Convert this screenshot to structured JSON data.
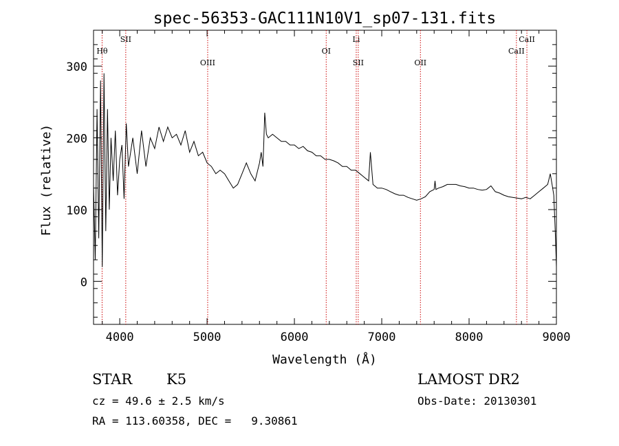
{
  "chart_data": {
    "type": "line",
    "title": "spec-56353-GAC111N10V1_sp07-131.fits",
    "xlabel": "Wavelength (Å)",
    "ylabel": "Flux (relative)",
    "xlim": [
      3700,
      9000
    ],
    "ylim": [
      -60,
      350
    ],
    "xticks": [
      4000,
      5000,
      6000,
      7000,
      8000,
      9000
    ],
    "yticks": [
      0,
      100,
      200,
      300
    ],
    "grid": false,
    "series": [
      {
        "color": "#000000",
        "x": [
          3700,
          3720,
          3740,
          3760,
          3780,
          3800,
          3820,
          3840,
          3860,
          3880,
          3900,
          3925,
          3950,
          3975,
          4000,
          4025,
          4050,
          4075,
          4100,
          4150,
          4200,
          4250,
          4300,
          4350,
          4400,
          4450,
          4500,
          4550,
          4600,
          4650,
          4700,
          4750,
          4800,
          4850,
          4900,
          4950,
          5000,
          5050,
          5100,
          5150,
          5200,
          5250,
          5300,
          5350,
          5400,
          5450,
          5500,
          5550,
          5600,
          5620,
          5640,
          5650,
          5660,
          5680,
          5700,
          5750,
          5800,
          5850,
          5900,
          5950,
          6000,
          6050,
          6100,
          6150,
          6200,
          6250,
          6300,
          6350,
          6400,
          6450,
          6500,
          6550,
          6600,
          6650,
          6700,
          6750,
          6800,
          6850,
          6870,
          6900,
          6950,
          7000,
          7050,
          7100,
          7150,
          7200,
          7250,
          7300,
          7350,
          7400,
          7450,
          7500,
          7550,
          7600,
          7610,
          7620,
          7650,
          7700,
          7750,
          7800,
          7850,
          7900,
          7950,
          8000,
          8050,
          8100,
          8150,
          8200,
          8250,
          8300,
          8350,
          8400,
          8450,
          8500,
          8550,
          8600,
          8650,
          8700,
          8750,
          8800,
          8850,
          8900,
          8930,
          8950,
          8970,
          8990,
          9000
        ],
        "y": [
          135,
          30,
          240,
          60,
          280,
          20,
          290,
          70,
          240,
          100,
          200,
          140,
          210,
          120,
          170,
          190,
          115,
          220,
          160,
          200,
          150,
          210,
          160,
          200,
          185,
          215,
          195,
          215,
          200,
          205,
          190,
          210,
          180,
          195,
          175,
          180,
          165,
          160,
          150,
          155,
          150,
          140,
          130,
          135,
          150,
          165,
          150,
          140,
          165,
          180,
          160,
          195,
          235,
          205,
          200,
          205,
          200,
          195,
          195,
          190,
          190,
          185,
          188,
          182,
          180,
          175,
          175,
          170,
          170,
          168,
          165,
          160,
          160,
          155,
          155,
          150,
          145,
          140,
          180,
          135,
          130,
          130,
          128,
          125,
          122,
          120,
          120,
          117,
          115,
          113,
          115,
          118,
          125,
          128,
          140,
          128,
          130,
          132,
          135,
          135,
          135,
          133,
          132,
          130,
          130,
          128,
          127,
          128,
          133,
          125,
          123,
          120,
          118,
          117,
          116,
          115,
          117,
          115,
          120,
          125,
          130,
          135,
          150,
          135,
          120,
          60,
          20
        ]
      }
    ],
    "lines": [
      {
        "label": "Hθ",
        "x": 3798,
        "row": 1
      },
      {
        "label": "SII",
        "x": 4069,
        "row": 0
      },
      {
        "label": "OIII",
        "x": 5007,
        "row": 2
      },
      {
        "label": "OI",
        "x": 6364,
        "row": 1
      },
      {
        "label": "Li",
        "x": 6708,
        "row": 0
      },
      {
        "label": "SII",
        "x": 6731,
        "row": 2
      },
      {
        "label": "OII",
        "x": 7443,
        "row": 2
      },
      {
        "label": "CaII",
        "x": 8542,
        "row": 1
      },
      {
        "label": "CaII",
        "x": 8662,
        "row": 0
      }
    ],
    "line_color": "#cc0000"
  },
  "info": {
    "object_type": "STAR",
    "subclass": "K5",
    "survey": "LAMOST DR2",
    "redshift": "cz = 49.6 ± 2.5 km/s",
    "obs_date": "Obs-Date: 20130301",
    "coords": "RA = 113.60358, DEC =   9.30861"
  }
}
